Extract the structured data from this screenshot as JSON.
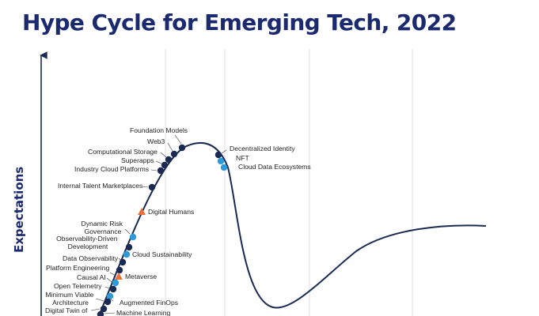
{
  "title": "Hype Cycle for Emerging Tech, 2022",
  "y_axis_label": "Expectations",
  "colors": {
    "title": "#1b2a6e",
    "curve": "#1b2a52",
    "dot_navy": "#1b2a52",
    "dot_blue": "#2e9bd8",
    "triangle": "#e8703a",
    "phase_divider": "#e6e6e6"
  },
  "technologies": [
    {
      "name": "Foundation Models",
      "marker": "navy-dot"
    },
    {
      "name": "Web3",
      "marker": "navy-dot"
    },
    {
      "name": "Computational Storage",
      "marker": "navy-dot"
    },
    {
      "name": "Superapps",
      "marker": "navy-dot"
    },
    {
      "name": "Industry Cloud Platforms",
      "marker": "navy-dot"
    },
    {
      "name": "Internal Talent Marketplaces",
      "marker": "navy-dot"
    },
    {
      "name": "Digital Humans",
      "marker": "orange-triangle"
    },
    {
      "name": "Dynamic Risk Governance",
      "lines": [
        "Dynamic Risk",
        "Governance"
      ],
      "marker": "blue-dot"
    },
    {
      "name": "Observability-Driven Development",
      "lines": [
        "Observability-Driven",
        "Development"
      ],
      "marker": "navy-dot"
    },
    {
      "name": "Cloud Sustainability",
      "marker": "blue-dot"
    },
    {
      "name": "Data Observability",
      "marker": "navy-dot"
    },
    {
      "name": "Platform Engineering",
      "marker": "navy-dot"
    },
    {
      "name": "Causal AI",
      "marker": "navy-dot"
    },
    {
      "name": "Metaverse",
      "marker": "orange-triangle"
    },
    {
      "name": "Open Telemetry",
      "marker": "navy-dot"
    },
    {
      "name": "Minimum Viable Architecture",
      "lines": [
        "Minimum Viable",
        "Architecture"
      ],
      "marker": "navy-dot"
    },
    {
      "name": "Augmented FinOps",
      "marker": "blue-dot"
    },
    {
      "name": "Digital Twin of",
      "marker": "navy-dot"
    },
    {
      "name": "Machine Learning",
      "marker": "navy-dot"
    },
    {
      "name": "Decentralized Identity",
      "marker": "navy-dot"
    },
    {
      "name": "NFT",
      "marker": "blue-dot"
    },
    {
      "name": "Cloud Data Ecosystems",
      "marker": "blue-dot"
    }
  ]
}
